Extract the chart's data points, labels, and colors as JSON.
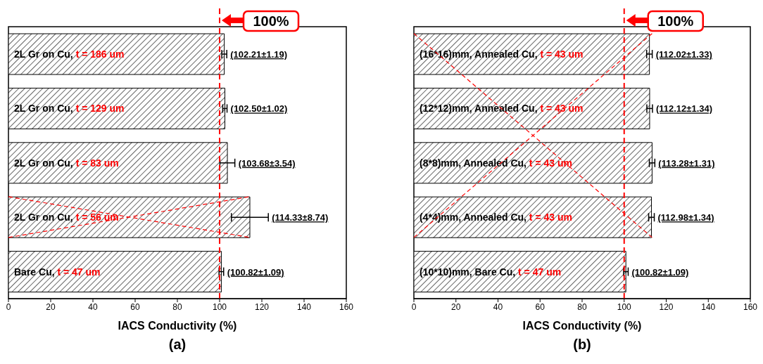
{
  "chart_data": [
    {
      "type": "bar",
      "orientation": "horizontal",
      "title": "(a)",
      "xlabel": "IACS Conductivity (%)",
      "categories": [
        "2L Gr on Cu, t = 186 um",
        "2L Gr on Cu, t = 129 um",
        "2L Gr on Cu, t = 83 um",
        "2L Gr on Cu, t = 56 um",
        "Bare Cu, t = 47 um"
      ],
      "values": [
        102.21,
        102.5,
        103.68,
        114.33,
        100.82
      ],
      "errors": [
        1.19,
        1.02,
        3.54,
        8.74,
        1.09
      ],
      "value_labels": [
        "(102.21±1.19)",
        "(102.50±1.02)",
        "(103.68±3.54)",
        "(114.33±8.74)",
        "(100.82±1.09)"
      ],
      "color": "#000000",
      "xlim": [
        0,
        160
      ],
      "xticks": [
        0,
        20,
        40,
        60,
        80,
        100,
        120,
        140,
        160
      ],
      "tick_labels": "x",
      "ref_lines": [
        {
          "axis": "x",
          "value": 100,
          "label": "100%",
          "color": "#ff0000",
          "line_style": "dashed"
        }
      ]
    },
    {
      "type": "bar",
      "orientation": "horizontal",
      "title": "(b)",
      "xlabel": "IACS Conductivity (%)",
      "categories": [
        "(16*16)mm, Annealed Cu, t = 43 um",
        "(12*12)mm, Annealed Cu, t = 43 um",
        "(8*8)mm, Annealed Cu, t = 43 um",
        "(4*4)mm, Annealed Cu, t = 43 um",
        "(10*10)mm, Bare Cu, t = 47 um"
      ],
      "values": [
        112.02,
        112.12,
        113.28,
        112.98,
        100.82
      ],
      "errors": [
        1.33,
        1.34,
        1.31,
        1.34,
        1.09
      ],
      "value_labels": [
        "(112.02±1.33)",
        "(112.12±1.34)",
        "(113.28±1.31)",
        "(112.98±1.34)",
        "(100.82±1.09)"
      ],
      "color": "#000000",
      "xlim": [
        0,
        160
      ],
      "xticks": [
        0,
        20,
        40,
        60,
        80,
        100,
        120,
        140,
        160
      ],
      "tick_labels": "x",
      "ref_lines": [
        {
          "axis": "x",
          "value": 100,
          "label": "100%",
          "color": "#ff0000",
          "line_style": "dashed"
        }
      ]
    }
  ]
}
